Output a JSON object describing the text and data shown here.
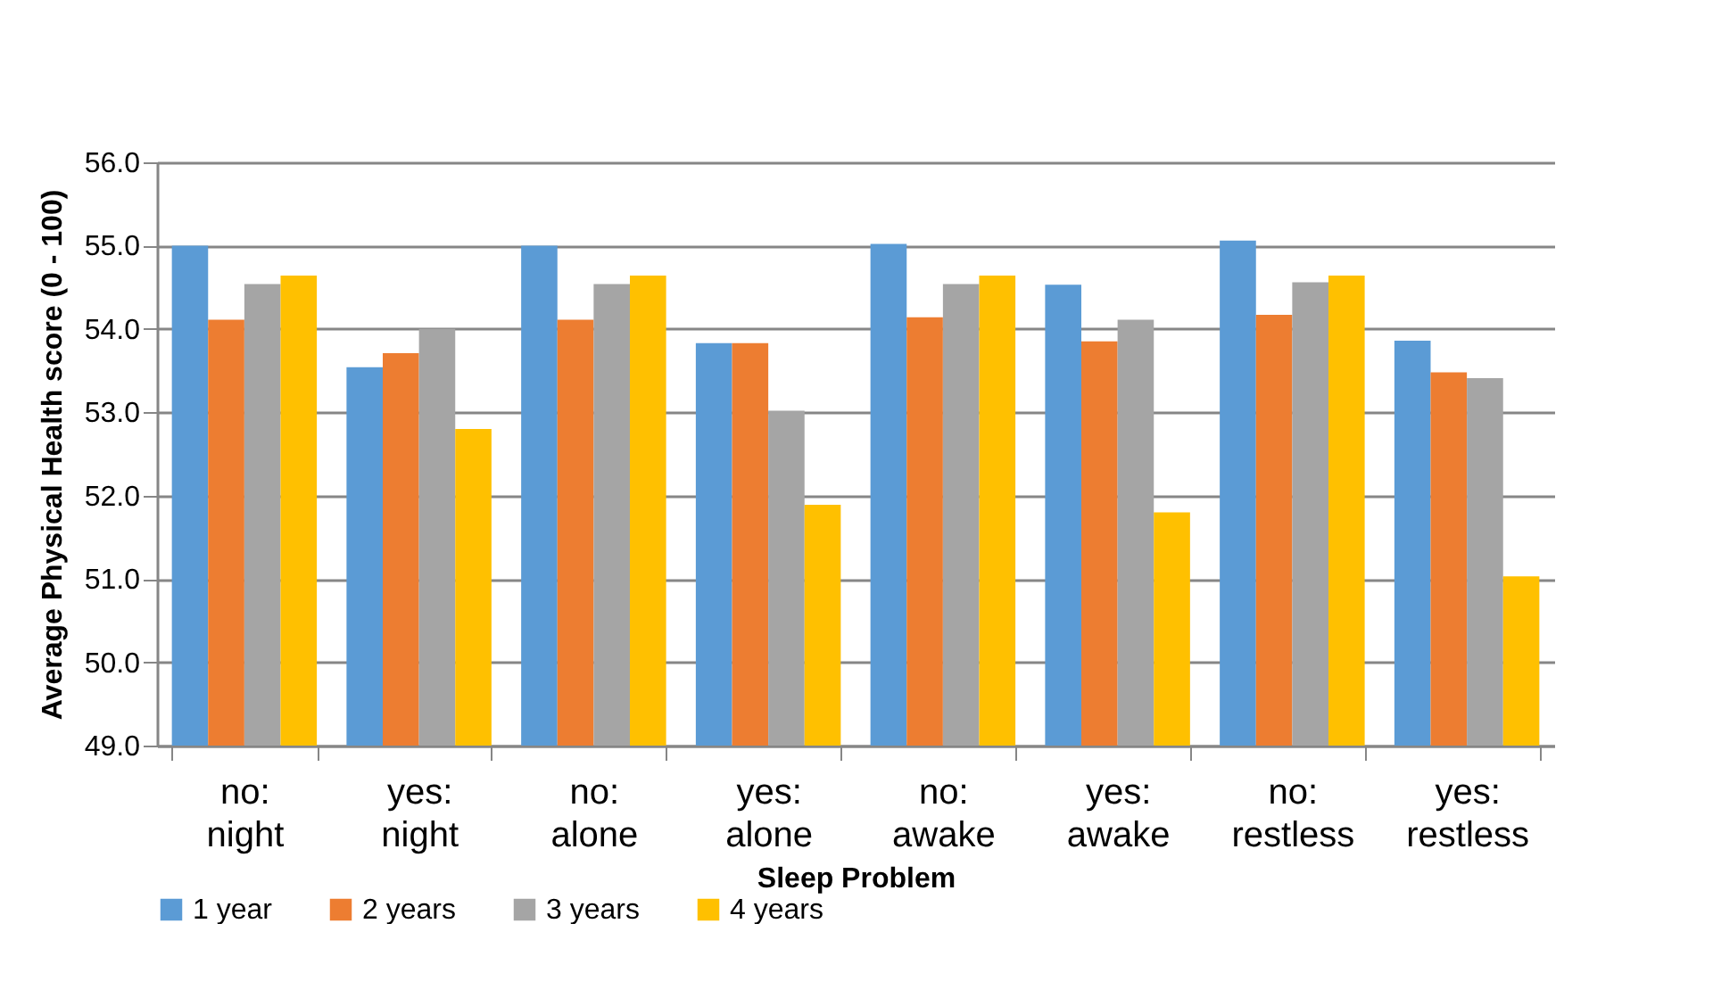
{
  "chart_data": {
    "type": "bar",
    "xlabel": "Sleep Problem",
    "ylabel": "Average Physical Health score (0 - 100)",
    "categories": [
      "no: night",
      "yes: night",
      "no: alone",
      "yes: alone",
      "no: awake",
      "yes: awake",
      "no: restless",
      "yes: restless"
    ],
    "series": [
      {
        "name": "1 year",
        "color": "#5b9bd5",
        "values": [
          55.0,
          53.54,
          55.0,
          53.83,
          55.02,
          54.53,
          55.06,
          53.86
        ]
      },
      {
        "name": "2 years",
        "color": "#ed7d31",
        "values": [
          54.11,
          53.71,
          54.11,
          53.83,
          54.14,
          53.85,
          54.17,
          53.48
        ]
      },
      {
        "name": "3 years",
        "color": "#a5a5a5",
        "values": [
          54.54,
          54.0,
          54.54,
          53.02,
          54.54,
          54.11,
          54.56,
          53.41
        ]
      },
      {
        "name": "4 years",
        "color": "#ffc000",
        "values": [
          54.64,
          52.8,
          54.64,
          51.89,
          54.64,
          51.8,
          54.64,
          51.03
        ]
      }
    ],
    "ylim": [
      49,
      56
    ],
    "yticks": [
      {
        "value": 49,
        "label": "49.0"
      },
      {
        "value": 50,
        "label": "50.0"
      },
      {
        "value": 51,
        "label": "51.0"
      },
      {
        "value": 52,
        "label": "52.0"
      },
      {
        "value": 53,
        "label": "53.0"
      },
      {
        "value": 54,
        "label": "54.0"
      },
      {
        "value": 55,
        "label": "55.0"
      },
      {
        "value": 56,
        "label": "56.0"
      }
    ],
    "grid": "y",
    "legend": "bottom"
  }
}
